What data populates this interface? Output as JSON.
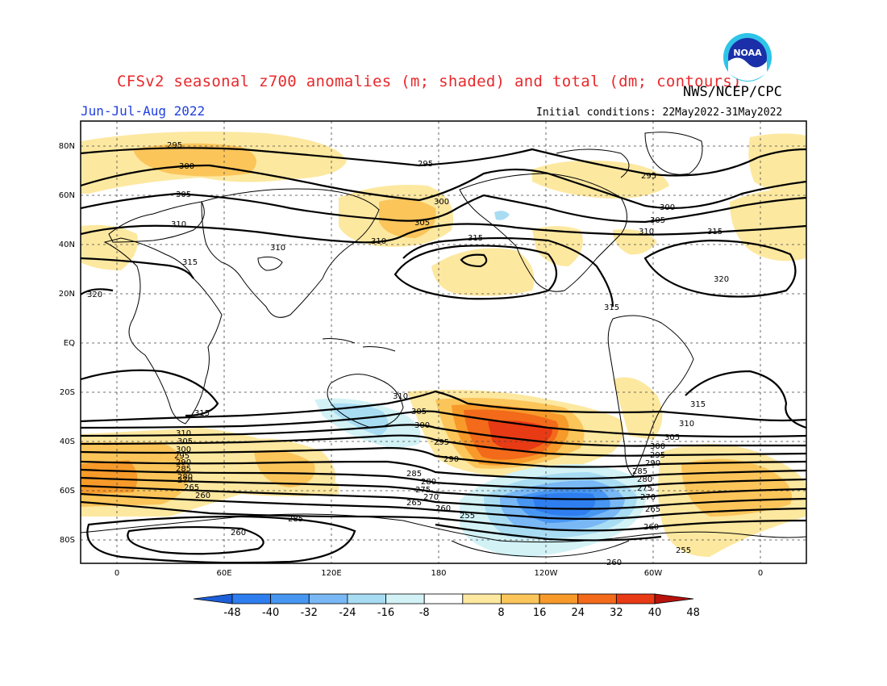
{
  "title": "CFSv2 seasonal z700 anomalies (m; shaded) and total (dm; contours)",
  "agency": "NWS/NCEP/CPC",
  "period": "Jun-Jul-Aug 2022",
  "initial_conditions": "Initial conditions: 22May2022-31May2022",
  "logo": {
    "text": "NOAA",
    "icon": "noaa-logo-icon"
  },
  "lat_labels": [
    "80N",
    "60N",
    "40N",
    "20N",
    "EQ",
    "20S",
    "40S",
    "60S",
    "80S"
  ],
  "lon_labels": [
    "0",
    "60E",
    "120E",
    "180",
    "120W",
    "60W",
    "0"
  ],
  "contour_labels": {
    "c255": "255",
    "c260": "260",
    "c265": "265",
    "c270": "270",
    "c275": "275",
    "c280": "280",
    "c285": "285",
    "c290": "290",
    "c295": "295",
    "c300": "300",
    "c305": "305",
    "c310": "310",
    "c315": "315",
    "c320": "320"
  },
  "colorbar": {
    "ticks": [
      "-48",
      "-40",
      "-32",
      "-24",
      "-16",
      "-8",
      "8",
      "16",
      "24",
      "32",
      "40",
      "48"
    ],
    "colors": [
      "#1c5fd8",
      "#2e7ef0",
      "#4796f2",
      "#79b8f5",
      "#a8dcf3",
      "#d2f2f6",
      "#ffffff",
      "#fde8a0",
      "#fbc55a",
      "#f79a2a",
      "#f26a1a",
      "#e83a14",
      "#b8120c"
    ]
  }
}
